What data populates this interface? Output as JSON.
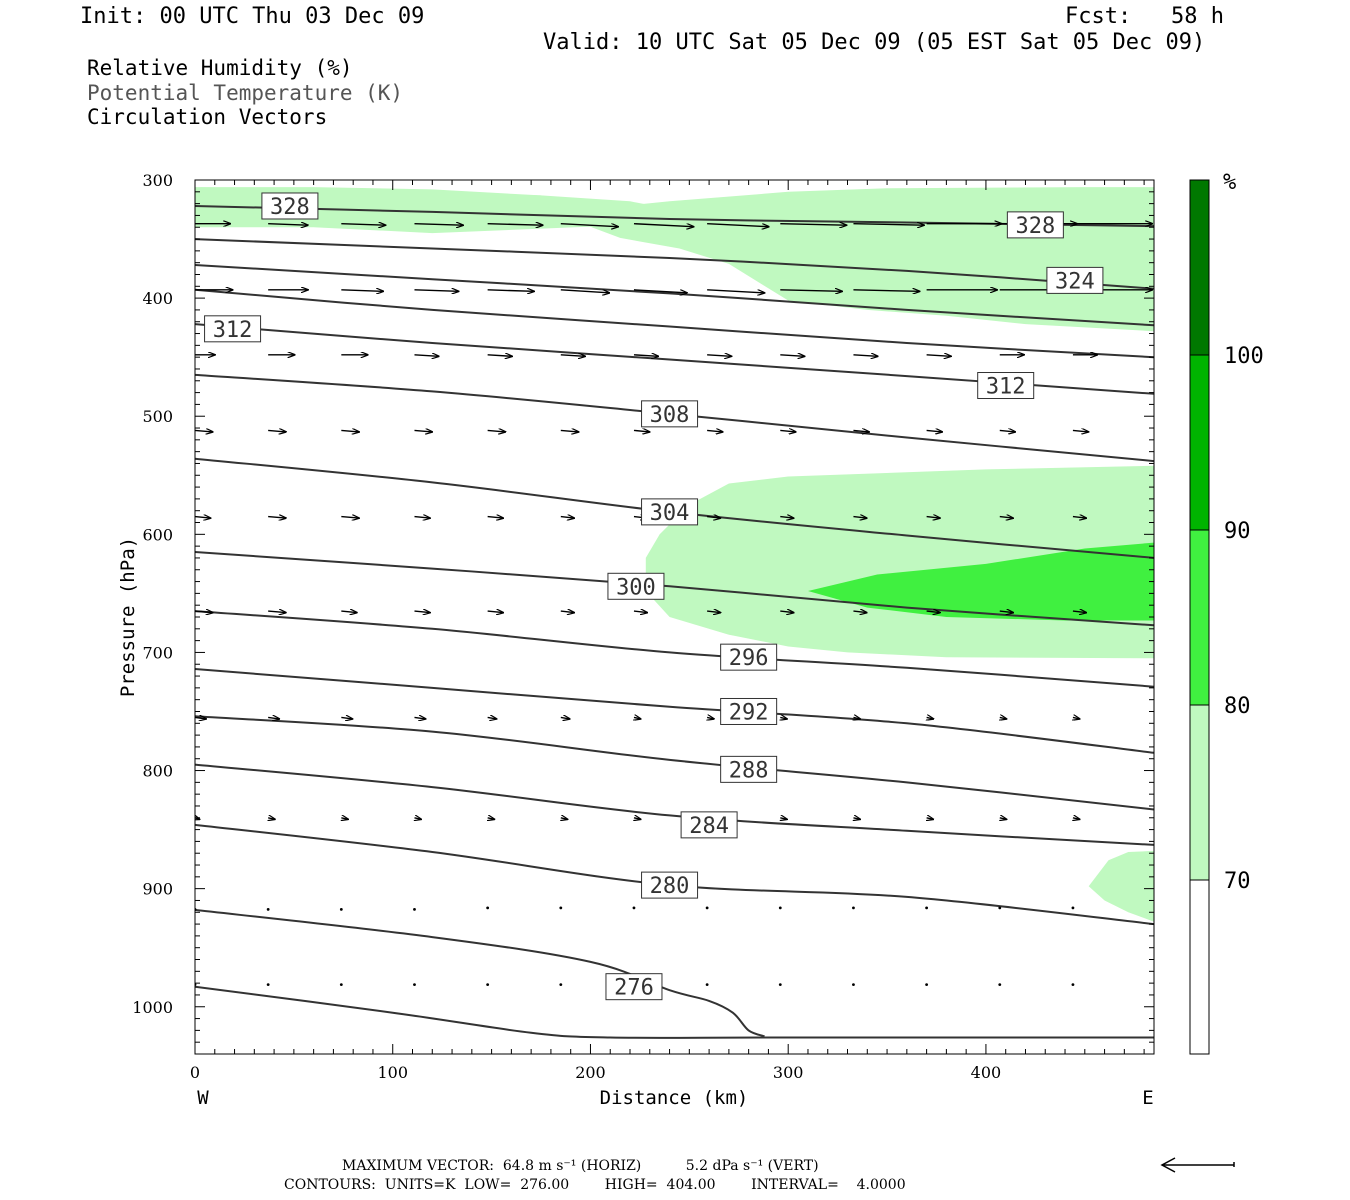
{
  "header": {
    "init": "Init: 00 UTC Thu 03 Dec 09",
    "fcst": "Fcst:   58 h",
    "valid": "Valid: 10 UTC Sat 05 Dec 09 (05 EST Sat 05 Dec 09)"
  },
  "legend": {
    "rh": "Relative Humidity (%)",
    "theta": "Potential Temperature (K)",
    "vectors": "Circulation Vectors"
  },
  "footer": {
    "max_vector": "MAXIMUM VECTOR:  64.8 m s⁻¹ (HORIZ)          5.2 dPa s⁻¹ (VERT)",
    "contours": "CONTOURS:  UNITS=K  LOW=  276.00        HIGH=  404.00        INTERVAL=    4.0000"
  },
  "colors": {
    "rh_70": "#c0f9c0",
    "rh_80": "#40f040",
    "rh_90": "#00b400",
    "rh_100": "#007800",
    "theta_line": "#333333"
  },
  "chart_data": {
    "type": "cross-section",
    "xlabel": "Distance (km)",
    "ylabel": "Pressure (hPa)",
    "xlim": [
      0,
      485
    ],
    "ylim": [
      1040,
      300
    ],
    "x_ticks": [
      0,
      100,
      200,
      300,
      400
    ],
    "y_ticks": [
      300,
      400,
      500,
      600,
      700,
      800,
      900,
      1000
    ],
    "x_end_labels": {
      "left": "W",
      "right": "E"
    },
    "colorbar": {
      "unit": "%",
      "levels": [
        70,
        80,
        90,
        100
      ],
      "colors": [
        "#c0f9c0",
        "#40f040",
        "#00b400",
        "#007800"
      ]
    },
    "rh_regions": [
      {
        "level": 70,
        "points": [
          [
            0,
            306
          ],
          [
            175,
            324
          ],
          [
            215,
            349
          ],
          [
            245,
            358
          ],
          [
            270,
            371
          ],
          [
            300,
            402
          ],
          [
            340,
            410
          ],
          [
            380,
            415
          ],
          [
            420,
            422
          ],
          [
            485,
            428
          ],
          [
            485,
            306
          ],
          [
            450,
            306
          ],
          [
            350,
            307
          ],
          [
            300,
            310
          ],
          [
            240,
            318
          ],
          [
            210,
            323
          ],
          [
            175,
            313
          ],
          [
            120,
            308
          ],
          [
            60,
            306
          ],
          [
            0,
            306
          ]
        ]
      },
      {
        "level": 70,
        "points": [
          [
            0,
            306
          ],
          [
            175,
            313
          ],
          [
            220,
            318
          ],
          [
            245,
            326
          ],
          [
            265,
            335
          ],
          [
            120,
            345
          ],
          [
            60,
            340
          ],
          [
            0,
            340
          ]
        ]
      },
      {
        "level": 70,
        "points": [
          [
            235,
            600
          ],
          [
            250,
            575
          ],
          [
            270,
            557
          ],
          [
            300,
            551
          ],
          [
            400,
            545
          ],
          [
            485,
            542
          ],
          [
            485,
            705
          ],
          [
            380,
            704
          ],
          [
            330,
            700
          ],
          [
            300,
            695
          ],
          [
            270,
            685
          ],
          [
            240,
            670
          ],
          [
            228,
            648
          ],
          [
            228,
            620
          ]
        ]
      },
      {
        "level": 80,
        "points": [
          [
            310,
            648
          ],
          [
            345,
            634
          ],
          [
            400,
            625
          ],
          [
            450,
            612
          ],
          [
            485,
            607
          ],
          [
            485,
            673
          ],
          [
            440,
            673
          ],
          [
            380,
            670
          ],
          [
            340,
            662
          ]
        ]
      },
      {
        "level": 70,
        "points": [
          [
            452,
            898
          ],
          [
            462,
            876
          ],
          [
            472,
            869
          ],
          [
            485,
            868
          ],
          [
            485,
            928
          ],
          [
            472,
            920
          ],
          [
            460,
            910
          ]
        ]
      }
    ],
    "theta_contours": [
      {
        "value": 328,
        "points": [
          [
            0,
            322
          ],
          [
            120,
            327
          ],
          [
            240,
            333
          ],
          [
            360,
            336
          ],
          [
            485,
            339
          ]
        ],
        "labels": [
          [
            48,
            322
          ],
          [
            425,
            338
          ]
        ]
      },
      {
        "value": 324,
        "points": [
          [
            0,
            350
          ],
          [
            120,
            358
          ],
          [
            240,
            366
          ],
          [
            360,
            377
          ],
          [
            485,
            392
          ]
        ],
        "labels": [
          [
            445,
            385
          ]
        ]
      },
      {
        "value": 320,
        "points": [
          [
            0,
            372
          ],
          [
            120,
            384
          ],
          [
            240,
            396
          ],
          [
            360,
            410
          ],
          [
            485,
            423
          ]
        ],
        "labels": []
      },
      {
        "value": 316,
        "points": [
          [
            0,
            393
          ],
          [
            120,
            410
          ],
          [
            240,
            424
          ],
          [
            360,
            438
          ],
          [
            485,
            450
          ]
        ],
        "labels": []
      },
      {
        "value": 312,
        "points": [
          [
            0,
            422
          ],
          [
            120,
            438
          ],
          [
            240,
            452
          ],
          [
            360,
            466
          ],
          [
            485,
            481
          ]
        ],
        "labels": [
          [
            19,
            426
          ],
          [
            410,
            474
          ]
        ]
      },
      {
        "value": 308,
        "points": [
          [
            0,
            465
          ],
          [
            120,
            479
          ],
          [
            240,
            498
          ],
          [
            360,
            518
          ],
          [
            485,
            538
          ]
        ],
        "labels": [
          [
            240,
            498
          ]
        ]
      },
      {
        "value": 304,
        "points": [
          [
            0,
            536
          ],
          [
            120,
            556
          ],
          [
            240,
            581
          ],
          [
            360,
            601
          ],
          [
            485,
            620
          ]
        ],
        "labels": [
          [
            240,
            581
          ]
        ]
      },
      {
        "value": 300,
        "points": [
          [
            0,
            615
          ],
          [
            120,
            629
          ],
          [
            240,
            644
          ],
          [
            360,
            662
          ],
          [
            485,
            677
          ]
        ],
        "labels": [
          [
            223,
            644
          ]
        ]
      },
      {
        "value": 296,
        "points": [
          [
            0,
            665
          ],
          [
            120,
            680
          ],
          [
            240,
            700
          ],
          [
            360,
            713
          ],
          [
            485,
            729
          ]
        ],
        "labels": [
          [
            280,
            704
          ]
        ]
      },
      {
        "value": 292,
        "points": [
          [
            0,
            714
          ],
          [
            120,
            730
          ],
          [
            240,
            746
          ],
          [
            360,
            760
          ],
          [
            485,
            785
          ]
        ],
        "labels": [
          [
            280,
            750
          ]
        ]
      },
      {
        "value": 288,
        "points": [
          [
            0,
            754
          ],
          [
            120,
            767
          ],
          [
            240,
            791
          ],
          [
            360,
            810
          ],
          [
            485,
            833
          ]
        ],
        "labels": [
          [
            280,
            799
          ]
        ]
      },
      {
        "value": 284,
        "points": [
          [
            0,
            795
          ],
          [
            120,
            814
          ],
          [
            240,
            838
          ],
          [
            360,
            851
          ],
          [
            485,
            863
          ]
        ],
        "labels": [
          [
            260,
            846
          ]
        ]
      },
      {
        "value": 280,
        "points": [
          [
            0,
            846
          ],
          [
            120,
            869
          ],
          [
            240,
            897
          ],
          [
            360,
            907
          ],
          [
            485,
            930
          ]
        ],
        "labels": [
          [
            240,
            897
          ]
        ]
      },
      {
        "value": 276,
        "points": [
          [
            0,
            918
          ],
          [
            120,
            941
          ],
          [
            200,
            962
          ],
          [
            240,
            986
          ],
          [
            260,
            995
          ],
          [
            272,
            1005
          ],
          [
            280,
            1020
          ],
          [
            288,
            1025
          ]
        ],
        "labels": [
          [
            222,
            983
          ]
        ]
      },
      {
        "value": 272,
        "points": [
          [
            0,
            983
          ],
          [
            100,
            1005
          ],
          [
            170,
            1022
          ],
          [
            210,
            1026
          ],
          [
            300,
            1026
          ],
          [
            485,
            1026
          ]
        ],
        "labels": []
      }
    ],
    "vector_rows": [
      {
        "p": 337,
        "dx": [
          16,
          18,
          20,
          22,
          25,
          26,
          27,
          28,
          30,
          32,
          34,
          35,
          36
        ],
        "dp": [
          0,
          1,
          1,
          1,
          1,
          2,
          2,
          2,
          1,
          1,
          0,
          0,
          0
        ]
      },
      {
        "p": 393,
        "dx": [
          17,
          18,
          19,
          20,
          21,
          22,
          24,
          26,
          28,
          30,
          32,
          34,
          36
        ],
        "dp": [
          0,
          0,
          1,
          1,
          1,
          2,
          2,
          2,
          1,
          1,
          0,
          0,
          0
        ]
      },
      {
        "p": 448,
        "dx": [
          9,
          12,
          12,
          11,
          11,
          11,
          11,
          11,
          11,
          11,
          11,
          11,
          11
        ],
        "dp": [
          0,
          0,
          0,
          1,
          1,
          1,
          1,
          1,
          1,
          1,
          1,
          0,
          0
        ]
      },
      {
        "p": 512,
        "dx": [
          8,
          8,
          8,
          8,
          8,
          8,
          7,
          7,
          7,
          7,
          7,
          7,
          7
        ],
        "dp": [
          1,
          1,
          1,
          1,
          1,
          1,
          1,
          1,
          1,
          1,
          1,
          1,
          1
        ]
      },
      {
        "p": 585,
        "dx": [
          7,
          8,
          8,
          7,
          7,
          6,
          6,
          6,
          6,
          6,
          6,
          6,
          6
        ],
        "dp": [
          1,
          1,
          1,
          1,
          1,
          1,
          1,
          1,
          1,
          1,
          1,
          1,
          1
        ]
      },
      {
        "p": 665,
        "dx": [
          8,
          8,
          7,
          7,
          7,
          6,
          6,
          6,
          6,
          6,
          6,
          6,
          6
        ],
        "dp": [
          1,
          1,
          1,
          1,
          1,
          1,
          1,
          1,
          1,
          1,
          1,
          1,
          1
        ]
      },
      {
        "p": 755,
        "dx": [
          5,
          5,
          5,
          5,
          4,
          4,
          3,
          3,
          3,
          3,
          3,
          3,
          3
        ],
        "dp": [
          1,
          1,
          1,
          1,
          1,
          1,
          1,
          1,
          1,
          1,
          1,
          1,
          1
        ]
      },
      {
        "p": 840,
        "dx": [
          2,
          3,
          3,
          3,
          3,
          3,
          3,
          3,
          3,
          3,
          3,
          3,
          3
        ],
        "dp": [
          1,
          1,
          1,
          1,
          1,
          1,
          1,
          1,
          1,
          1,
          1,
          1,
          1
        ]
      },
      {
        "p": 915,
        "dx": [
          1,
          1,
          1,
          1,
          0,
          0,
          0,
          0,
          0,
          0,
          0,
          0,
          0
        ],
        "dp": [
          2,
          2,
          2,
          2,
          1,
          1,
          1,
          1,
          1,
          1,
          1,
          1,
          1
        ]
      },
      {
        "p": 980,
        "dx": [
          0,
          0,
          0,
          0,
          0,
          0,
          0,
          0,
          0,
          0,
          0,
          0,
          0
        ],
        "dp": [
          1,
          1,
          1,
          1,
          1,
          1,
          1,
          1,
          1,
          1,
          1,
          1,
          1
        ]
      }
    ],
    "vector_x_start": 0,
    "vector_x_step": 37
  }
}
